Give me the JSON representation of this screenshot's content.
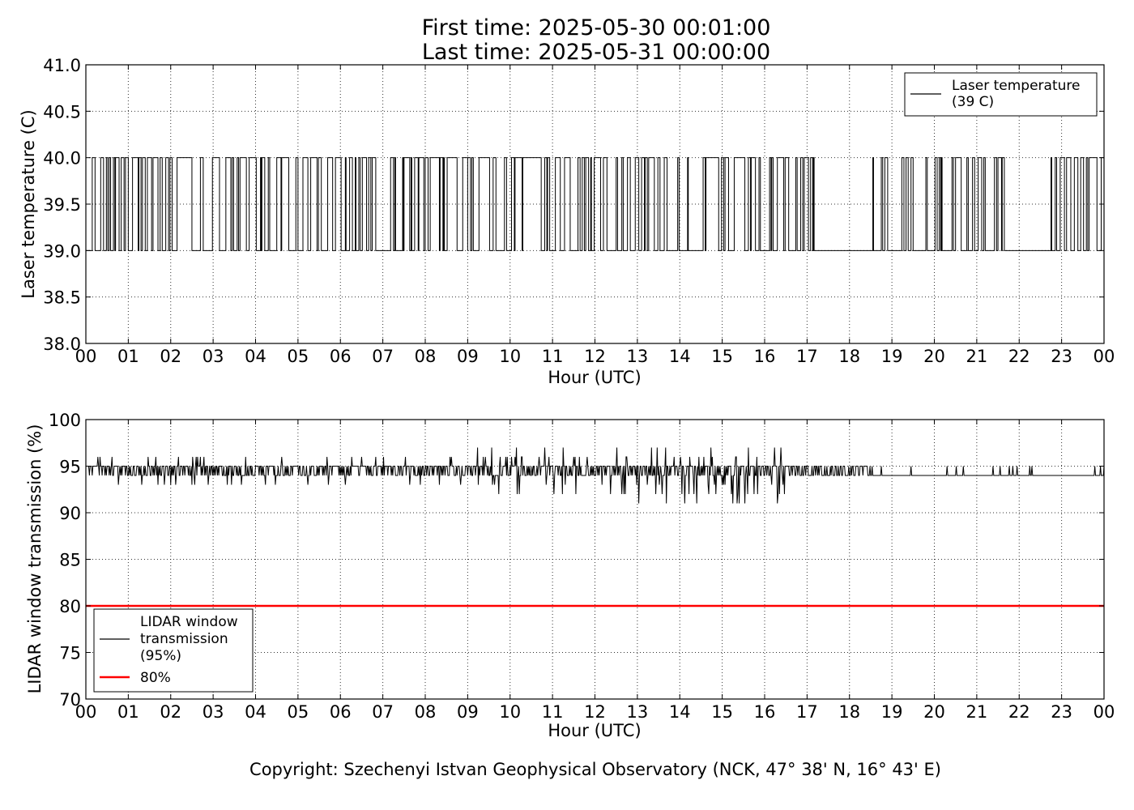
{
  "title": {
    "line1": "First time: 2025-05-30 00:01:00",
    "line2": "Last time: 2025-05-31 00:00:00"
  },
  "copyright": "Copyright: Szechenyi Istvan Geophysical Observatory (NCK, 47° 38' N, 16° 43' E)",
  "colors": {
    "series": "#000000",
    "threshold": "#ff0000"
  },
  "chart_data": [
    {
      "type": "line",
      "xlabel": "Hour (UTC)",
      "ylabel": "Laser temperature (C)",
      "xlim": [
        0,
        24
      ],
      "ylim": [
        38.0,
        41.0
      ],
      "xticks": [
        "00",
        "01",
        "02",
        "03",
        "04",
        "05",
        "06",
        "07",
        "08",
        "09",
        "10",
        "11",
        "12",
        "13",
        "14",
        "15",
        "16",
        "17",
        "18",
        "19",
        "20",
        "21",
        "22",
        "23",
        "00"
      ],
      "yticks": [
        "38.0",
        "38.5",
        "39.0",
        "39.5",
        "40.0",
        "40.5",
        "41.0"
      ],
      "grid": true,
      "legend_position": "top-right",
      "series": [
        {
          "name": "Laser temperature\n(39 C)",
          "legend_lines": [
            "Laser temperature",
            "(39 C)"
          ],
          "kind": "binary-toggle",
          "levels": [
            39.0,
            40.0
          ],
          "segments": [
            {
              "from": 0.0,
              "to": 1.45,
              "fraction_high": 0.55
            },
            {
              "from": 1.45,
              "to": 2.5,
              "fraction_high": 0.5
            },
            {
              "from": 2.5,
              "to": 5.0,
              "fraction_high": 0.5
            },
            {
              "from": 5.0,
              "to": 9.0,
              "fraction_high": 0.55
            },
            {
              "from": 9.0,
              "to": 11.0,
              "fraction_high": 0.6
            },
            {
              "from": 11.0,
              "to": 16.2,
              "fraction_high": 0.5
            },
            {
              "from": 16.2,
              "to": 17.3,
              "fraction_high": 0.35
            },
            {
              "from": 17.3,
              "to": 18.3,
              "fraction_high": 0.05
            },
            {
              "from": 18.3,
              "to": 19.8,
              "fraction_high": 0.15
            },
            {
              "from": 19.8,
              "to": 21.65,
              "fraction_high": 0.45
            },
            {
              "from": 21.65,
              "to": 22.75,
              "fraction_high": 0.0
            },
            {
              "from": 22.75,
              "to": 24.0,
              "fraction_high": 0.55
            }
          ]
        }
      ]
    },
    {
      "type": "line",
      "xlabel": "Hour (UTC)",
      "ylabel": "LIDAR window transmission (%)",
      "xlim": [
        0,
        24
      ],
      "ylim": [
        70,
        100
      ],
      "xticks": [
        "00",
        "01",
        "02",
        "03",
        "04",
        "05",
        "06",
        "07",
        "08",
        "09",
        "10",
        "11",
        "12",
        "13",
        "14",
        "15",
        "16",
        "17",
        "18",
        "19",
        "20",
        "21",
        "22",
        "23",
        "00"
      ],
      "yticks": [
        "70",
        "75",
        "80",
        "85",
        "90",
        "95",
        "100"
      ],
      "grid": true,
      "legend_position": "lower-left",
      "series": [
        {
          "name": "LIDAR window\ntransmission\n(95%)",
          "legend_lines": [
            "LIDAR window",
            "transmission",
            "(95%)"
          ],
          "kind": "noisy",
          "baseline": [
            {
              "from": 0.0,
              "to": 18.55,
              "value": 95
            },
            {
              "from": 18.55,
              "to": 24.0,
              "value": 94
            }
          ],
          "noise_segments": [
            {
              "from": 0.0,
              "to": 5.0,
              "min": 93,
              "max": 96
            },
            {
              "from": 5.0,
              "to": 8.0,
              "min": 93,
              "max": 96
            },
            {
              "from": 8.0,
              "to": 10.0,
              "min": 92,
              "max": 97
            },
            {
              "from": 10.0,
              "to": 13.0,
              "min": 92,
              "max": 97
            },
            {
              "from": 13.0,
              "to": 16.5,
              "min": 91,
              "max": 97
            },
            {
              "from": 16.5,
              "to": 18.55,
              "min": 94,
              "max": 95
            }
          ]
        },
        {
          "name": "80%",
          "legend_lines": [
            "80%"
          ],
          "kind": "threshold",
          "value": 80
        }
      ]
    }
  ]
}
